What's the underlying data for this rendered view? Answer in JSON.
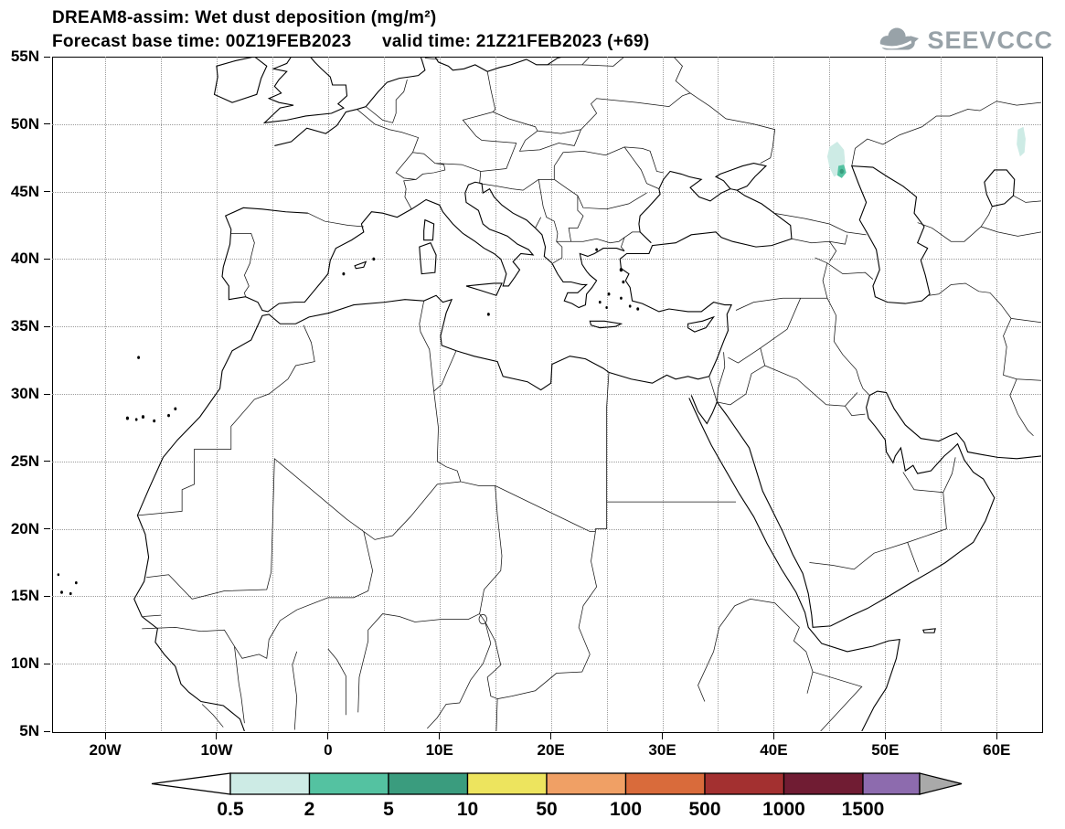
{
  "header": {
    "title": "DREAM8-assim: Wet dust deposition (mg/m²)",
    "subtitle": "Forecast base time: 00Z19FEB2023      valid time: 21Z21FEB2023 (+69)",
    "model": "DREAM8-assim",
    "variable": "Wet dust deposition",
    "unit": "mg/m²",
    "forecast_base_time": "00Z19FEB2023",
    "valid_time": "21Z21FEB2023",
    "lead_hours": "+69"
  },
  "logo": {
    "text": "SEEVCCC",
    "icon": "cloud-arrow-icon",
    "color": "#98a2a8"
  },
  "axes": {
    "lat_ticks": [
      {
        "label": "55N",
        "deg": 55
      },
      {
        "label": "50N",
        "deg": 50
      },
      {
        "label": "45N",
        "deg": 45
      },
      {
        "label": "40N",
        "deg": 40
      },
      {
        "label": "35N",
        "deg": 35
      },
      {
        "label": "30N",
        "deg": 30
      },
      {
        "label": "25N",
        "deg": 25
      },
      {
        "label": "20N",
        "deg": 20
      },
      {
        "label": "15N",
        "deg": 15
      },
      {
        "label": "10N",
        "deg": 10
      },
      {
        "label": "5N",
        "deg": 5
      }
    ],
    "lon_ticks": [
      {
        "label": "20W",
        "deg": -20
      },
      {
        "label": "10W",
        "deg": -10
      },
      {
        "label": "0",
        "deg": 0
      },
      {
        "label": "10E",
        "deg": 10
      },
      {
        "label": "20E",
        "deg": 20
      },
      {
        "label": "30E",
        "deg": 30
      },
      {
        "label": "40E",
        "deg": 40
      },
      {
        "label": "50E",
        "deg": 50
      },
      {
        "label": "60E",
        "deg": 60
      }
    ]
  },
  "colorbar": {
    "labels": [
      "0.5",
      "2",
      "5",
      "10",
      "50",
      "100",
      "500",
      "1000",
      "1500"
    ],
    "cell_colors": [
      "#cdebe5",
      "#54c2a1",
      "#3a9c7e",
      "#ede45e",
      "#f0a065",
      "#d96b3b",
      "#a33030",
      "#701c33"
    ],
    "over_color": "#8d6bae",
    "left_arrow_color": "#ffffff",
    "right_arrow_color": "#a9a9a9",
    "outline_color": "#000000",
    "unit": "mg/m²"
  },
  "chart_data": {
    "type": "heatmap",
    "title": "DREAM8-assim: Wet dust deposition (mg/m²)",
    "model": "DREAM8-assim",
    "variable": "Wet dust deposition",
    "unit": "mg/m²",
    "forecast_base_time": "00Z19FEB2023",
    "valid_time": "21Z21FEB2023 (+69)",
    "projection": "lat-lon map, North Africa / Europe / Middle East",
    "lon_range_deg": [
      -24.8,
      64.0
    ],
    "lat_range_deg": [
      5,
      55
    ],
    "graticule_deg": 5,
    "grid": "dotted",
    "lon_tick_labels": [
      "20W",
      "10W",
      "0",
      "10E",
      "20E",
      "30E",
      "40E",
      "50E",
      "60E"
    ],
    "lat_tick_labels": [
      "5N",
      "10N",
      "15N",
      "20N",
      "25N",
      "30N",
      "35N",
      "40N",
      "45N",
      "50N",
      "55N"
    ],
    "levels_mg_m2": [
      0.5,
      2,
      5,
      10,
      50,
      100,
      500,
      1000,
      1500
    ],
    "palette": [
      "#cdebe5",
      "#54c2a1",
      "#3a9c7e",
      "#ede45e",
      "#f0a065",
      "#d96b3b",
      "#a33030",
      "#701c33",
      "#8d6bae"
    ],
    "legend_position": "bottom",
    "features": [
      {
        "region": "northwest of Caspian Sea",
        "lon": 45.6,
        "lat": 47.4,
        "value_mg_m2": "0.5-2"
      },
      {
        "region": "NW Caspian coast",
        "lon": 46.1,
        "lat": 46.5,
        "value_mg_m2": "2-5"
      },
      {
        "region": "small core on NW Caspian coast",
        "lon": 46.1,
        "lat": 46.5,
        "value_mg_m2": "5-10"
      },
      {
        "region": "east of Caspian, near right map edge ~62E",
        "lon": 62.2,
        "lat": 48.7,
        "value_mg_m2": "0.5-2"
      }
    ]
  }
}
